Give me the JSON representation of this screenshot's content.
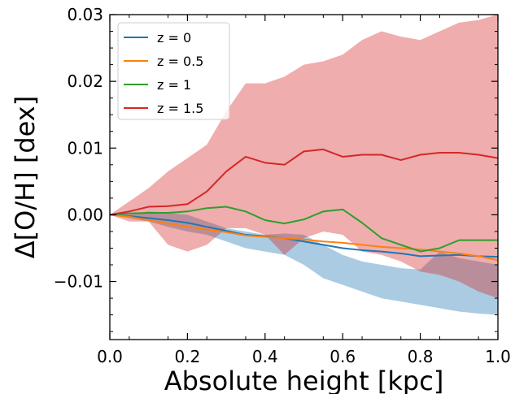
{
  "chart_data": {
    "type": "line",
    "xlabel": "Absolute height [kpc]",
    "ylabel": "Δ[O/H] [dex]",
    "xlim": [
      0.0,
      1.0
    ],
    "ylim": [
      -0.0187,
      0.03
    ],
    "x_ticks": [
      0.0,
      0.2,
      0.4,
      0.6,
      0.8,
      1.0
    ],
    "x_tick_labels": [
      "0.0",
      "0.2",
      "0.4",
      "0.6",
      "0.8",
      "1.0"
    ],
    "y_ticks": [
      -0.01,
      0.0,
      0.01,
      0.02,
      0.03
    ],
    "y_tick_labels": [
      "−0.01",
      "0.00",
      "0.01",
      "0.02",
      "0.03"
    ],
    "legend_position": "top-left",
    "grid": false,
    "x": [
      0.0,
      0.05,
      0.1,
      0.15,
      0.2,
      0.25,
      0.3,
      0.35,
      0.4,
      0.45,
      0.5,
      0.55,
      0.6,
      0.65,
      0.7,
      0.75,
      0.8,
      0.85,
      0.9,
      0.95,
      1.0
    ],
    "series": [
      {
        "name": "z = 0",
        "color": "#1f77b4",
        "values": [
          0.0,
          -0.0002,
          -0.0005,
          -0.0008,
          -0.0012,
          -0.0018,
          -0.0024,
          -0.003,
          -0.0032,
          -0.0035,
          -0.004,
          -0.0045,
          -0.005,
          -0.0053,
          -0.0055,
          -0.0058,
          -0.0062,
          -0.0061,
          -0.006,
          -0.0062,
          -0.0063
        ],
        "band_upper": [
          0.0,
          0.0,
          0.0005,
          0.0003,
          0.0,
          -0.001,
          -0.002,
          -0.0025,
          -0.003,
          -0.0028,
          -0.003,
          -0.0045,
          -0.006,
          -0.007,
          -0.0075,
          -0.008,
          -0.0082,
          -0.0055,
          -0.0065,
          -0.007,
          -0.0075
        ],
        "band_lower": [
          0.0,
          -0.0005,
          -0.001,
          -0.0018,
          -0.0025,
          -0.003,
          -0.004,
          -0.005,
          -0.0055,
          -0.006,
          -0.0075,
          -0.0095,
          -0.0105,
          -0.0115,
          -0.0125,
          -0.013,
          -0.0135,
          -0.014,
          -0.0145,
          -0.0148,
          -0.015
        ]
      },
      {
        "name": "z = 0.5",
        "color": "#ff7f0e",
        "values": [
          0.0,
          -0.0003,
          -0.0008,
          -0.0013,
          -0.0018,
          -0.0022,
          -0.0026,
          -0.0031,
          -0.0033,
          -0.0035,
          -0.0037,
          -0.004,
          -0.0042,
          -0.0045,
          -0.0048,
          -0.005,
          -0.0052,
          -0.0055,
          -0.0058,
          -0.0062,
          -0.0068
        ]
      },
      {
        "name": "z = 1",
        "color": "#2ca02c",
        "values": [
          0.0,
          0.0002,
          0.0003,
          0.0003,
          0.0005,
          0.001,
          0.0012,
          0.0005,
          -0.0008,
          -0.0013,
          -0.0007,
          0.0005,
          0.0008,
          -0.0012,
          -0.0035,
          -0.0045,
          -0.0055,
          -0.005,
          -0.0038,
          -0.0038,
          -0.0038
        ]
      },
      {
        "name": "z = 1.5",
        "color": "#d62728",
        "values": [
          0.0,
          0.0005,
          0.0012,
          0.0013,
          0.0016,
          0.0035,
          0.0065,
          0.0087,
          0.0078,
          0.0075,
          0.0095,
          0.0098,
          0.0087,
          0.009,
          0.009,
          0.0082,
          0.009,
          0.0093,
          0.0093,
          0.009,
          0.0085
        ],
        "band_upper": [
          0.0,
          0.002,
          0.004,
          0.0065,
          0.0085,
          0.0105,
          0.0155,
          0.0197,
          0.0197,
          0.0207,
          0.0225,
          0.023,
          0.024,
          0.0262,
          0.0275,
          0.0267,
          0.0262,
          0.0275,
          0.0288,
          0.0292,
          0.03
        ],
        "band_lower": [
          0.0,
          -0.001,
          -0.001,
          -0.0045,
          -0.0055,
          -0.0045,
          -0.002,
          -0.002,
          -0.003,
          -0.006,
          -0.0035,
          -0.0025,
          -0.003,
          -0.0055,
          -0.006,
          -0.007,
          -0.0085,
          -0.009,
          -0.01,
          -0.0115,
          -0.0125
        ]
      }
    ]
  }
}
